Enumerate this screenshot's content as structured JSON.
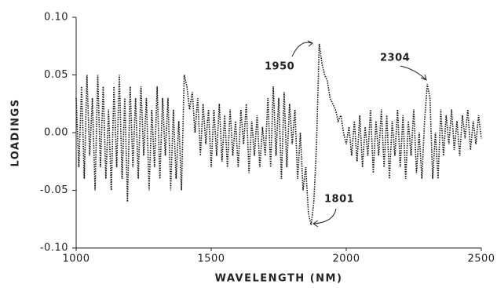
{
  "chart_data": {
    "type": "line",
    "xlabel": "WAVELENGTH (NM)",
    "ylabel": "LOADINGS",
    "x": [
      1000,
      1010,
      1020,
      1030,
      1040,
      1050,
      1060,
      1070,
      1080,
      1090,
      1100,
      1110,
      1120,
      1130,
      1140,
      1150,
      1160,
      1170,
      1180,
      1190,
      1200,
      1210,
      1220,
      1230,
      1240,
      1250,
      1260,
      1270,
      1280,
      1290,
      1300,
      1310,
      1320,
      1330,
      1340,
      1350,
      1360,
      1370,
      1380,
      1390,
      1400,
      1410,
      1420,
      1430,
      1440,
      1450,
      1460,
      1470,
      1480,
      1490,
      1500,
      1510,
      1520,
      1530,
      1540,
      1550,
      1560,
      1570,
      1580,
      1590,
      1600,
      1610,
      1620,
      1630,
      1640,
      1650,
      1660,
      1670,
      1680,
      1690,
      1700,
      1710,
      1720,
      1730,
      1740,
      1750,
      1760,
      1770,
      1780,
      1790,
      1800,
      1810,
      1820,
      1830,
      1840,
      1850,
      1860,
      1870,
      1880,
      1890,
      1900,
      1910,
      1920,
      1930,
      1940,
      1950,
      1960,
      1970,
      1980,
      1990,
      2000,
      2010,
      2020,
      2030,
      2040,
      2050,
      2060,
      2070,
      2080,
      2090,
      2100,
      2110,
      2120,
      2130,
      2140,
      2150,
      2160,
      2170,
      2180,
      2190,
      2200,
      2210,
      2220,
      2230,
      2240,
      2250,
      2260,
      2270,
      2280,
      2290,
      2300,
      2310,
      2320,
      2330,
      2340,
      2350,
      2360,
      2370,
      2380,
      2390,
      2400,
      2410,
      2420,
      2430,
      2440,
      2450,
      2460,
      2470,
      2480,
      2490,
      2500
    ],
    "series": [
      {
        "color": "#111111",
        "values": [
          0.03,
          -0.03,
          0.04,
          -0.04,
          0.05,
          -0.02,
          0.03,
          -0.05,
          0.05,
          -0.03,
          0.04,
          -0.04,
          0.02,
          -0.05,
          0.04,
          -0.03,
          0.05,
          -0.04,
          0.03,
          -0.06,
          0.04,
          -0.03,
          0.03,
          -0.04,
          0.04,
          -0.02,
          0.03,
          -0.05,
          0.02,
          -0.03,
          0.04,
          -0.04,
          0.03,
          -0.02,
          0.03,
          -0.05,
          0.02,
          -0.04,
          0.01,
          -0.05,
          0.05,
          0.04,
          0.02,
          0.035,
          0.0,
          0.03,
          -0.02,
          0.025,
          -0.01,
          0.02,
          -0.03,
          0.02,
          -0.02,
          0.025,
          -0.025,
          0.015,
          -0.03,
          0.02,
          -0.02,
          0.01,
          -0.03,
          0.02,
          -0.01,
          0.025,
          -0.035,
          0.01,
          -0.02,
          0.015,
          -0.03,
          0.005,
          -0.02,
          0.03,
          -0.03,
          0.04,
          -0.02,
          0.03,
          -0.04,
          0.035,
          -0.03,
          0.025,
          -0.01,
          0.02,
          -0.04,
          0.0,
          -0.05,
          -0.03,
          -0.07,
          -0.08,
          -0.06,
          -0.01,
          0.077,
          0.06,
          0.05,
          0.045,
          0.03,
          0.025,
          0.02,
          0.01,
          0.015,
          0.0,
          -0.01,
          0.005,
          -0.02,
          0.01,
          -0.025,
          0.015,
          -0.03,
          0.005,
          -0.02,
          0.02,
          -0.035,
          0.01,
          -0.02,
          0.02,
          -0.03,
          0.015,
          -0.04,
          0.01,
          -0.02,
          0.02,
          -0.03,
          0.015,
          -0.04,
          0.01,
          -0.02,
          0.02,
          -0.035,
          0.0,
          -0.04,
          0.01,
          0.042,
          0.03,
          -0.04,
          0.0,
          -0.04,
          0.02,
          -0.02,
          0.015,
          -0.01,
          0.02,
          -0.015,
          0.01,
          -0.02,
          0.015,
          -0.005,
          0.02,
          -0.015,
          0.01,
          -0.01,
          0.015,
          -0.005
        ]
      }
    ],
    "xlim": [
      1000,
      2500
    ],
    "xticks": [
      1000,
      1500,
      2000,
      2500
    ],
    "ylim": [
      -0.1,
      0.1
    ],
    "yticks": [
      {
        "value": -0.1,
        "label": "-0.10"
      },
      {
        "value": -0.05,
        "label": "-0.05"
      },
      {
        "value": 0,
        "label": "0.00"
      },
      {
        "value": 0.05,
        "label": "0.05"
      },
      {
        "value": 0.1,
        "label": "0.10"
      }
    ],
    "line_style": "dotted",
    "annotations": [
      {
        "text": "1950"
      },
      {
        "text": "2304"
      },
      {
        "text": "1801"
      }
    ]
  }
}
